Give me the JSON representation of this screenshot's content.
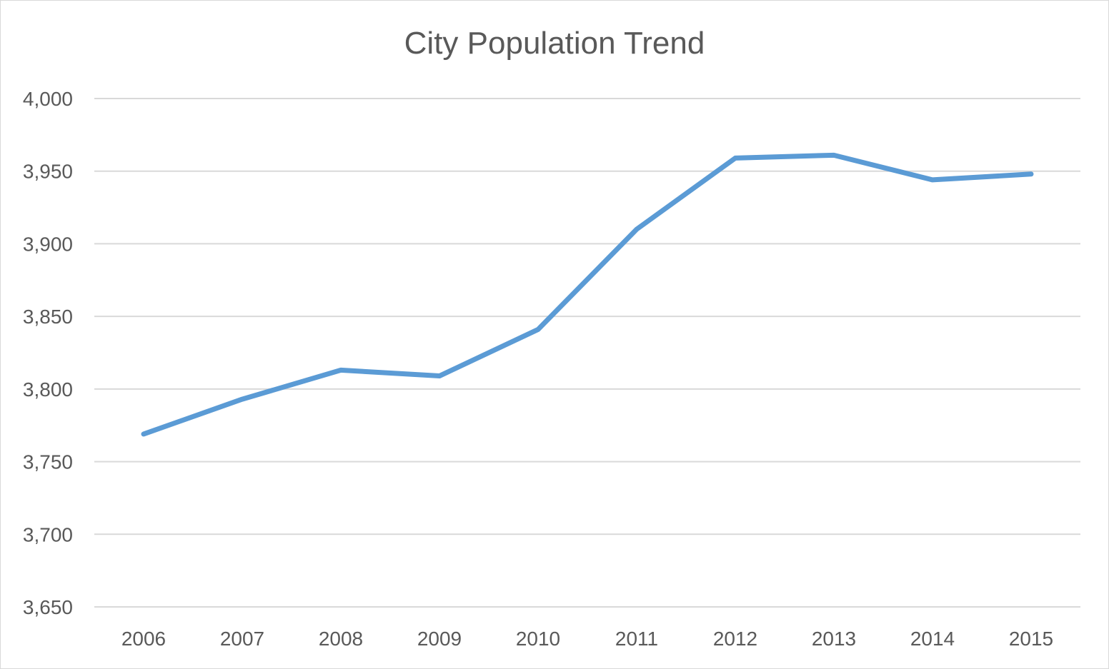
{
  "chart_data": {
    "type": "line",
    "title": "City Population Trend",
    "xlabel": "",
    "ylabel": "",
    "categories": [
      "2006",
      "2007",
      "2008",
      "2009",
      "2010",
      "2011",
      "2012",
      "2013",
      "2014",
      "2015"
    ],
    "series": [
      {
        "values": [
          3769,
          3793,
          3813,
          3809,
          3841,
          3910,
          3959,
          3961,
          3944,
          3948
        ],
        "color": "#5b9bd5"
      }
    ],
    "ylim": [
      3650,
      4000
    ],
    "yticks": [
      3650,
      3700,
      3750,
      3800,
      3850,
      3900,
      3950,
      4000
    ],
    "ytick_labels": [
      "3,650",
      "3,700",
      "3,750",
      "3,800",
      "3,850",
      "3,900",
      "3,950",
      "4,000"
    ],
    "grid": true,
    "gridline_color": "#d9d9d9",
    "legend": "none"
  }
}
